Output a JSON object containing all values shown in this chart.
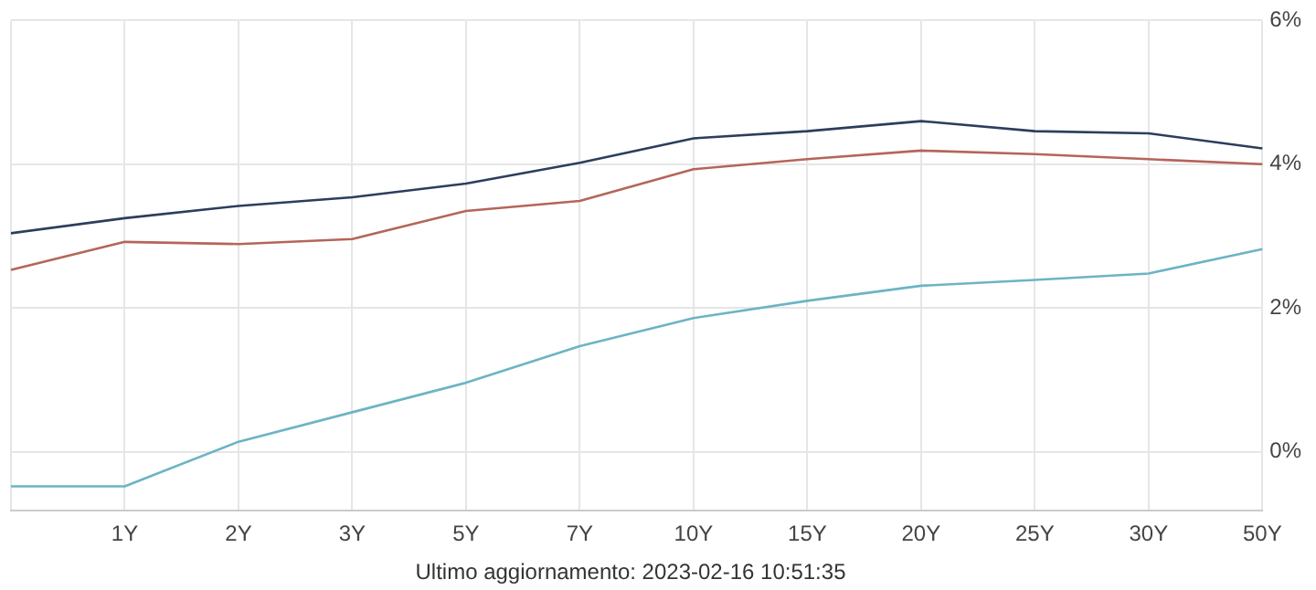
{
  "chart_data": {
    "type": "line",
    "categories": [
      null,
      "1Y",
      "2Y",
      "3Y",
      "5Y",
      "7Y",
      "10Y",
      "15Y",
      "20Y",
      "25Y",
      "30Y",
      "50Y"
    ],
    "series": [
      {
        "color": "#2c3e5c",
        "values": [
          3.04,
          3.25,
          3.42,
          3.54,
          3.73,
          4.02,
          4.36,
          4.46,
          4.6,
          4.46,
          4.43,
          4.22
        ]
      },
      {
        "color": "#b5655a",
        "values": [
          2.53,
          2.92,
          2.89,
          2.96,
          3.35,
          3.49,
          3.93,
          4.07,
          4.19,
          4.14,
          4.07,
          4.0
        ]
      },
      {
        "color": "#6cb4c4",
        "values": [
          -0.48,
          -0.48,
          0.14,
          0.55,
          0.96,
          1.47,
          1.86,
          2.1,
          2.31,
          2.39,
          2.48,
          2.82
        ]
      }
    ],
    "ylim": [
      -0.82,
      6
    ],
    "yticks": [
      {
        "value": 0,
        "label": "0%"
      },
      {
        "value": 2,
        "label": "2%"
      },
      {
        "value": 4,
        "label": "4%"
      },
      {
        "value": 6,
        "label": "6%"
      }
    ],
    "grid": true,
    "legend": false,
    "marker": "none",
    "line_style": "solid",
    "annotations": [
      "Ultimo aggiornamento: 2023-02-16 10:51:35"
    ]
  }
}
